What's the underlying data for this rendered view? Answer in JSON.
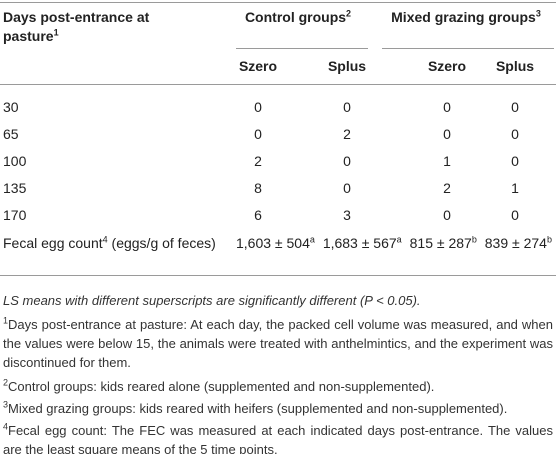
{
  "table": {
    "header": {
      "day_col": {
        "text": "Days post-entrance at pasture",
        "sup": "1"
      },
      "groups": [
        {
          "text": "Control groups",
          "sup": "2"
        },
        {
          "text": "Mixed grazing groups",
          "sup": "3"
        }
      ],
      "subheaders": [
        "Szero",
        "Splus",
        "Szero",
        "Splus"
      ]
    },
    "rows": [
      [
        "30",
        "0",
        "0",
        "0",
        "0"
      ],
      [
        "65",
        "0",
        "2",
        "0",
        "0"
      ],
      [
        "100",
        "2",
        "0",
        "1",
        "0"
      ],
      [
        "135",
        "8",
        "0",
        "2",
        "1"
      ],
      [
        "170",
        "6",
        "3",
        "0",
        "0"
      ]
    ],
    "fec_row": {
      "label": {
        "text": "Fecal egg count",
        "sup": "4",
        "unit": "(eggs/g of feces)"
      },
      "cells": [
        {
          "text": "1,603 ± 504",
          "sup": "a"
        },
        {
          "text": "1,683 ± 567",
          "sup": "a"
        },
        {
          "text": "815 ± 287",
          "sup": "b"
        },
        {
          "text": "839 ± 274",
          "sup": "b"
        }
      ]
    }
  },
  "footnotes": [
    {
      "text": "LS means with different superscripts are significantly different (P < 0.05)."
    },
    {
      "mark": "1",
      "text": "Days post-entrance at pasture: At each day, the packed cell volume was measured, and when the values were below 15, the animals were treated with anthelmintics, and the experiment was discontinued for them."
    },
    {
      "mark": "2",
      "text": "Control groups: kids reared alone (supplemented and non-supplemented)."
    },
    {
      "mark": "3",
      "text": "Mixed grazing groups: kids reared with heifers (supplemented and non-supplemented)."
    },
    {
      "mark": "4",
      "text": "Fecal egg count: The FEC was measured at each indicated days post-entrance. The values are the least square means of the 5 time points."
    }
  ]
}
